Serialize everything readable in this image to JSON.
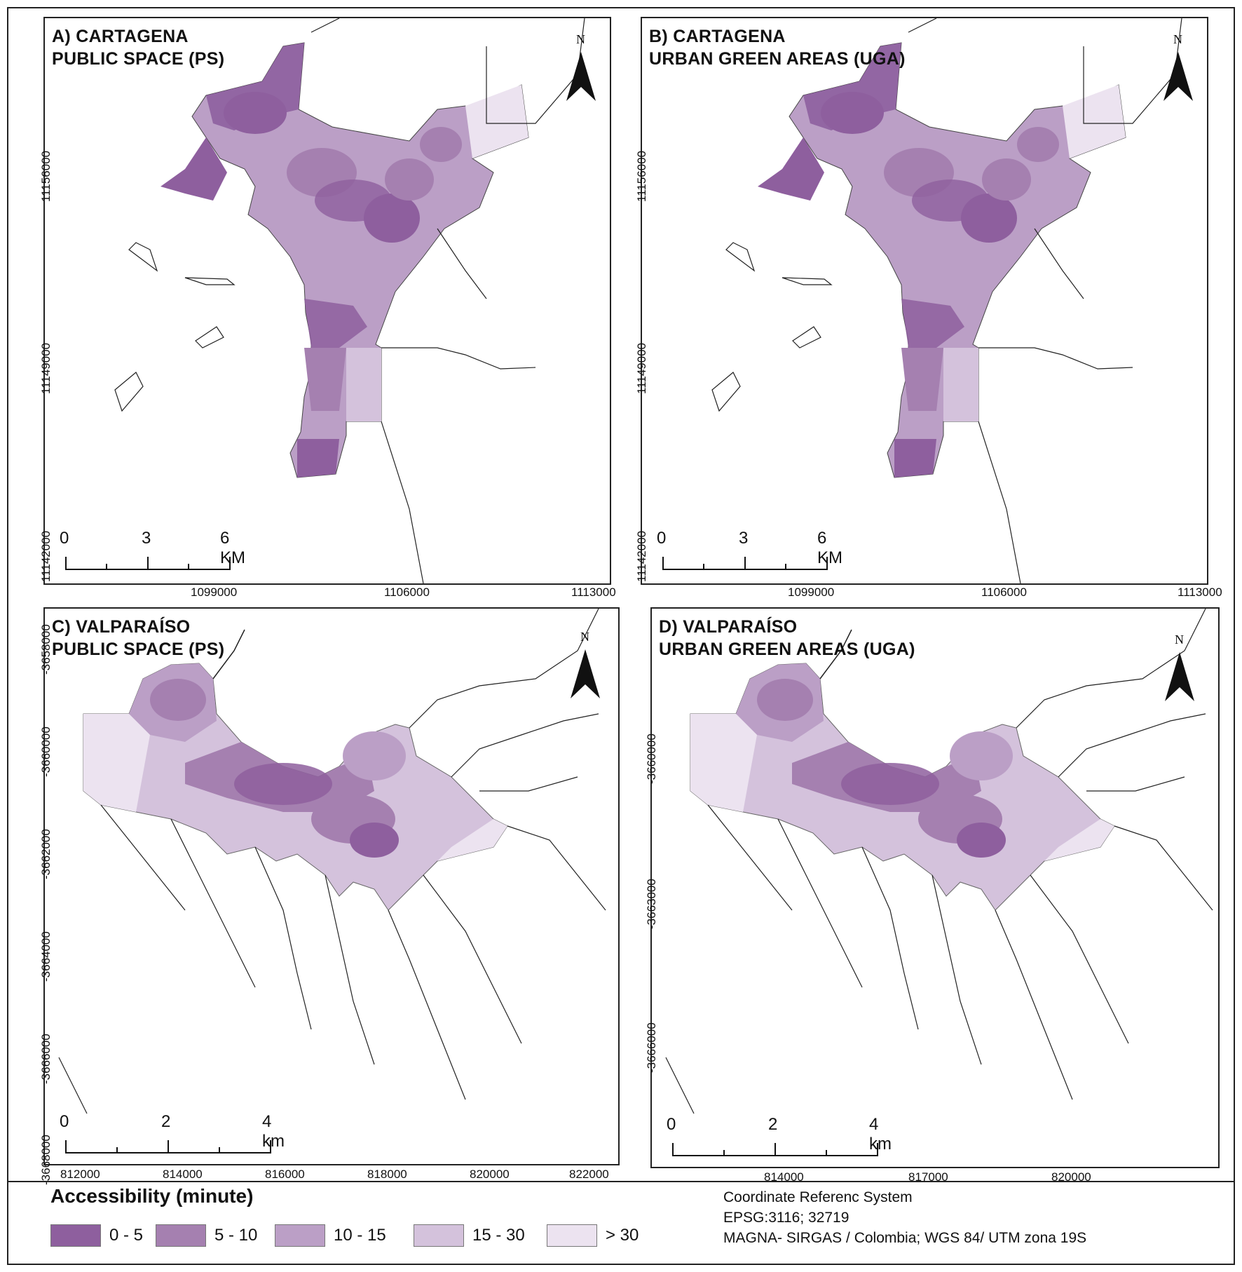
{
  "panels": {
    "a": {
      "title": "A) CARTAGENA\nPUBLIC SPACE (PS)",
      "scale_labels": [
        "0",
        "3",
        "6 KM"
      ],
      "x_ticks": [
        "1099000",
        "1106000",
        "1113000"
      ],
      "y_ticks": [
        "11156000",
        "11149000",
        "11142000"
      ],
      "north": "N"
    },
    "b": {
      "title": "B) CARTAGENA\nURBAN GREEN AREAS (UGA)",
      "scale_labels": [
        "0",
        "3",
        "6 KM"
      ],
      "x_ticks": [
        "1099000",
        "1106000",
        "1113000"
      ],
      "y_ticks": [
        "11156000",
        "11149000",
        "11142000"
      ],
      "north": "N"
    },
    "c": {
      "title": "C) VALPARAÍSO\nPUBLIC SPACE (PS)",
      "scale_labels": [
        "0",
        "2",
        "4 km"
      ],
      "x_ticks": [
        "812000",
        "814000",
        "816000",
        "818000",
        "820000",
        "822000"
      ],
      "y_ticks": [
        "-3658000",
        "-3660000",
        "-3662000",
        "-3664000",
        "-3666000",
        "-3668000"
      ],
      "north": "N"
    },
    "d": {
      "title": "D) VALPARAÍSO\nURBAN GREEN AREAS (UGA)",
      "scale_labels": [
        "0",
        "2",
        "4 km"
      ],
      "x_ticks": [
        "814000",
        "817000",
        "820000"
      ],
      "y_ticks": [
        "-3660000",
        "-3663000",
        "-3666000"
      ],
      "north": "N"
    }
  },
  "legend": {
    "title": "Accessibility (minute)",
    "items": [
      {
        "label": "0 - 5",
        "color": "#8e5f9e"
      },
      {
        "label": "5 - 10",
        "color": "#a580b0"
      },
      {
        "label": "10 - 15",
        "color": "#bb9fc6"
      },
      {
        "label": "15 - 30",
        "color": "#d4c2dc"
      },
      {
        "label": "> 30",
        "color": "#ece3f0"
      }
    ]
  },
  "crs": {
    "line1": "Coordinate Referenc System",
    "line2": "EPSG:3116; 32719",
    "line3": "MAGNA- SIRGAS / Colombia; WGS 84/ UTM zona 19S"
  }
}
